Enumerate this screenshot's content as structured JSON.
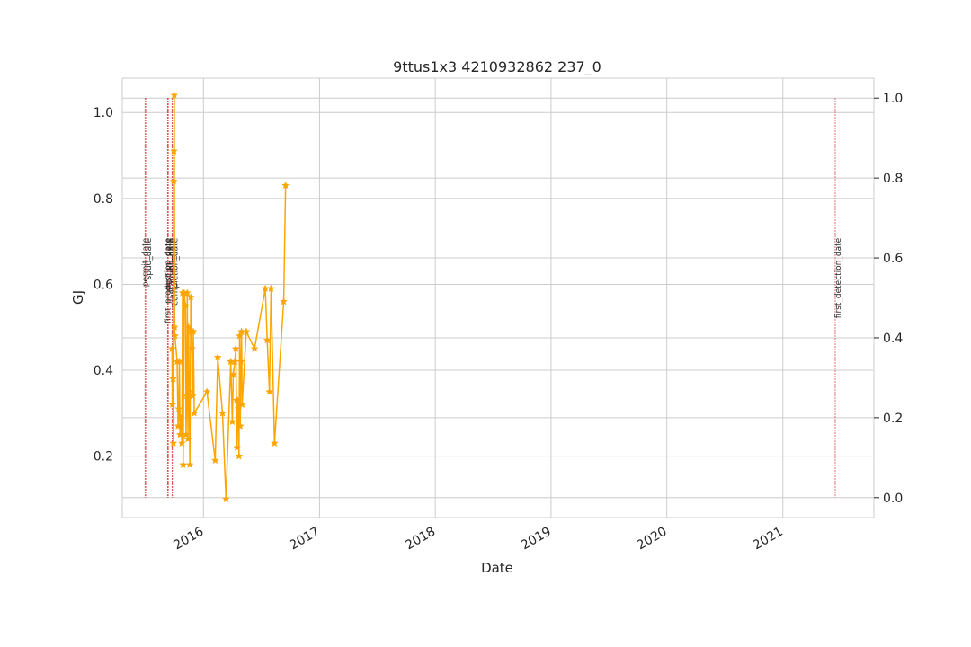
{
  "chart_data": {
    "type": "line",
    "title": "9ttus1x3 4210932862 237_0",
    "xlabel": "Date",
    "ylabel": "GJ",
    "ylabel_color": "#1f77b4",
    "series_color": "#ffa500",
    "marker": "star",
    "grid": true,
    "xlim": [
      "2015-04-20",
      "2021-10-15"
    ],
    "ylim": [
      0.057,
      1.08
    ],
    "yticks": [
      0.2,
      0.4,
      0.6,
      0.8,
      1.0
    ],
    "ytick_labels": [
      "0.2",
      "0.4",
      "0.6",
      "0.8",
      "1.0"
    ],
    "y2lim": [
      -0.05,
      1.05
    ],
    "y2ticks": [
      0.0,
      0.2,
      0.4,
      0.6,
      0.8,
      1.0
    ],
    "y2tick_labels": [
      "0.0",
      "0.2",
      "0.4",
      "0.6",
      "0.8",
      "1.0"
    ],
    "xticks": [
      "2016-01-01",
      "2017-01-01",
      "2018-01-01",
      "2019-01-01",
      "2020-01-01",
      "2021-01-01"
    ],
    "xtick_labels": [
      "2016",
      "2017",
      "2018",
      "2019",
      "2020",
      "2021"
    ],
    "series": [
      {
        "x": [
          "2015-09-24",
          "2015-09-25",
          "2015-09-27",
          "2015-09-28",
          "2015-09-29",
          "2015-09-30",
          "2015-10-01",
          "2015-10-02",
          "2015-10-03",
          "2015-10-10",
          "2015-10-13",
          "2015-10-15",
          "2015-10-17",
          "2015-10-19",
          "2015-10-21",
          "2015-10-22",
          "2015-10-23",
          "2015-10-25",
          "2015-10-27",
          "2015-10-29",
          "2015-11-01",
          "2015-11-05",
          "2015-11-07",
          "2015-11-09",
          "2015-11-11",
          "2015-11-13",
          "2015-11-15",
          "2015-11-17",
          "2015-11-19",
          "2015-11-22",
          "2015-11-24",
          "2015-11-26",
          "2015-11-28",
          "2015-11-30",
          "2015-12-03",
          "2016-01-12",
          "2016-02-07",
          "2016-02-15",
          "2016-03-01",
          "2016-03-12",
          "2016-03-27",
          "2016-04-01",
          "2016-04-04",
          "2016-04-09",
          "2016-04-12",
          "2016-04-14",
          "2016-04-16",
          "2016-04-18",
          "2016-04-20",
          "2016-04-22",
          "2016-04-24",
          "2016-04-26",
          "2016-04-28",
          "2016-04-30",
          "2016-05-02",
          "2016-05-15",
          "2016-06-10",
          "2016-07-14",
          "2016-07-20",
          "2016-07-27",
          "2016-08-01",
          "2016-08-12",
          "2016-09-10",
          "2016-09-16"
        ],
        "values": [
          0.45,
          0.32,
          0.38,
          0.23,
          0.84,
          0.91,
          1.04,
          0.5,
          0.48,
          0.42,
          0.27,
          0.31,
          0.42,
          0.25,
          0.29,
          0.27,
          0.28,
          0.23,
          0.58,
          0.18,
          0.58,
          0.55,
          0.25,
          0.34,
          0.58,
          0.24,
          0.5,
          0.35,
          0.18,
          0.57,
          0.49,
          0.45,
          0.34,
          0.49,
          0.3,
          0.35,
          0.19,
          0.43,
          0.3,
          0.1,
          0.42,
          0.28,
          0.39,
          0.42,
          0.45,
          0.33,
          0.22,
          0.33,
          0.31,
          0.2,
          0.48,
          0.27,
          0.42,
          0.49,
          0.32,
          0.49,
          0.45,
          0.59,
          0.47,
          0.35,
          0.59,
          0.23,
          0.56,
          0.83
        ]
      }
    ],
    "vlines": [
      {
        "date": "2015-07-01",
        "label": "permit_date"
      },
      {
        "date": "2015-07-03",
        "label": "spud_date"
      },
      {
        "date": "2015-09-10",
        "label": "first_production_date"
      },
      {
        "date": "2015-09-11",
        "label": "frac_job_date"
      },
      {
        "date": "2015-09-12",
        "label": "first_inj_date"
      },
      {
        "date": "2015-09-24",
        "label": "completion_date"
      },
      {
        "date": "2015-09-25",
        "label": "last_comp_date"
      },
      {
        "date": "2021-06-15",
        "label": "first_detection_date"
      }
    ],
    "vline_color": "#d62728"
  }
}
